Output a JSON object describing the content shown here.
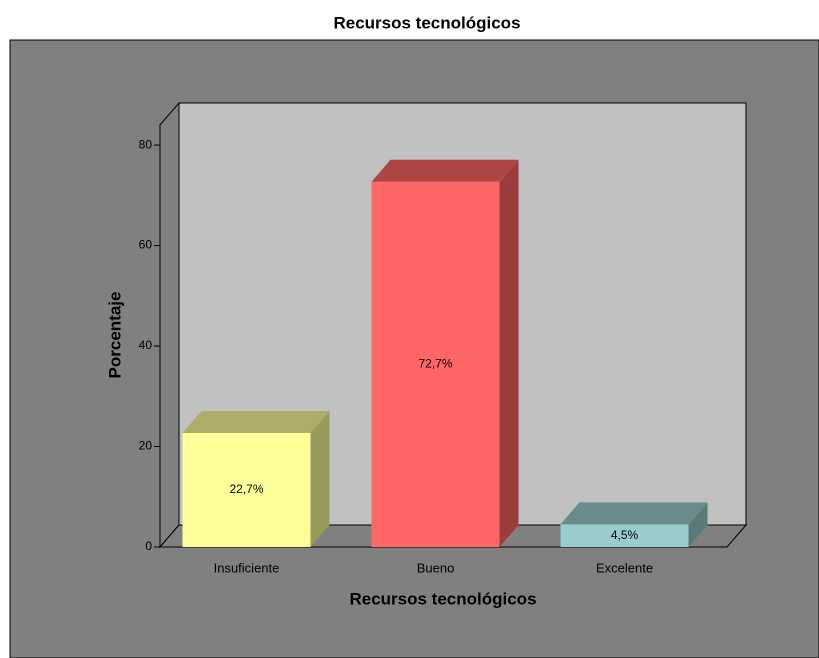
{
  "chart_data": {
    "type": "bar",
    "title": "Recursos tecnológicos",
    "x_label": "Recursos tecnológicos",
    "y_label": "Porcentaje",
    "categories": [
      "Insuficiente",
      "Bueno",
      "Excelente"
    ],
    "values": [
      22.7,
      72.7,
      4.5
    ],
    "value_labels": [
      "22,7%",
      "72,7%",
      "4,5%"
    ],
    "colors": [
      "#ffff99",
      "#ff6666",
      "#99cccc"
    ],
    "ylim": [
      0,
      84
    ],
    "yticks": [
      0,
      20,
      40,
      60,
      80
    ],
    "grid": false
  }
}
